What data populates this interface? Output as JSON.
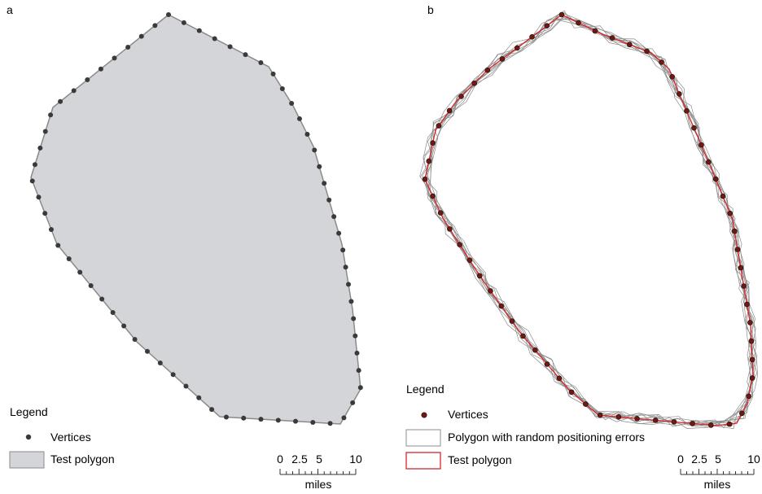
{
  "panel_a": {
    "letter": "a",
    "legend": {
      "title": "Legend",
      "items": [
        {
          "label": "Vertices",
          "icon": "vertex-dot-icon"
        },
        {
          "label": "Test polygon",
          "icon": "gray-fill-swatch-icon"
        }
      ]
    },
    "scale": {
      "ticks": [
        "0",
        "2.5",
        "5",
        "10"
      ],
      "unit": "miles"
    }
  },
  "panel_b": {
    "letter": "b",
    "legend": {
      "title": "Legend",
      "items": [
        {
          "label": "Vertices",
          "icon": "red-vertex-dot-icon"
        },
        {
          "label": "Polygon with random positioning errors",
          "icon": "gray-outline-swatch-icon"
        },
        {
          "label": "Test polygon",
          "icon": "red-outline-swatch-icon"
        }
      ]
    },
    "scale": {
      "ticks": [
        "0",
        "2.5",
        "5",
        "10"
      ],
      "unit": "miles"
    }
  },
  "colors": {
    "polygon_fill": "#d4d5d8",
    "polygon_stroke": "#8a8a8a",
    "vertex": "#3a3a3a",
    "vertex_b": "#6b1a14",
    "error_lines": "#8c8c8c",
    "test_line": "#d9262a"
  }
}
